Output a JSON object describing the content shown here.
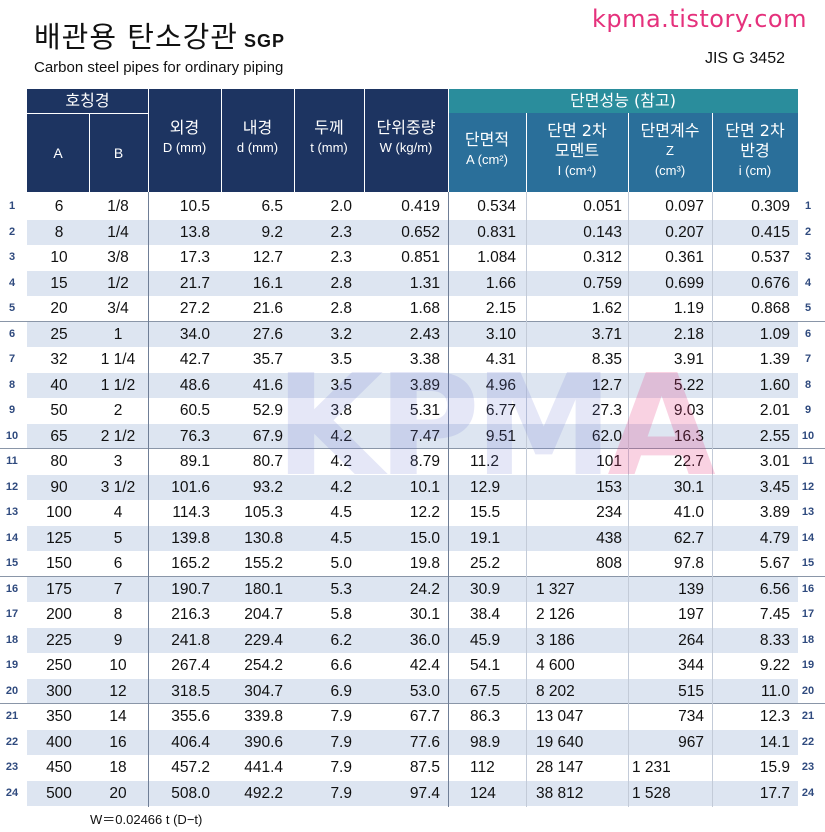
{
  "header": {
    "title_ko": "배관용  탄소강관",
    "title_suffix": "SGP",
    "title_en": "Carbon steel pipes for ordinary piping",
    "site": "kpma.tistory.com",
    "standard": "JIS G 3452"
  },
  "columns": {
    "nominal": "호칭경",
    "a": "A",
    "b": "B",
    "od": "외경",
    "od_unit": "D (mm)",
    "id": "내경",
    "id_unit": "d (mm)",
    "thk": "두께",
    "thk_unit": "t  (mm)",
    "wt": "단위중량",
    "wt_unit": "W (kg/m)",
    "section": "단면성능 (참고)",
    "area": "단면적",
    "area_unit": "A (cm²)",
    "moi": "단면 2차 모멘트",
    "moi_unit": "I (cm⁴)",
    "mod": "단면계수",
    "mod_sym": "Z",
    "mod_unit": "(cm³)",
    "rad": "단면 2차 반경",
    "rad_unit": "i (cm)"
  },
  "rows": [
    [
      "1",
      "6",
      "1/8",
      "10.5",
      "6.5",
      "2.0",
      "0.419",
      "0.534",
      "0.051",
      "0.097",
      "0.309"
    ],
    [
      "2",
      "8",
      "1/4",
      "13.8",
      "9.2",
      "2.3",
      "0.652",
      "0.831",
      "0.143",
      "0.207",
      "0.415"
    ],
    [
      "3",
      "10",
      "3/8",
      "17.3",
      "12.7",
      "2.3",
      "0.851",
      "1.084",
      "0.312",
      "0.361",
      "0.537"
    ],
    [
      "4",
      "15",
      "1/2",
      "21.7",
      "16.1",
      "2.8",
      "1.31",
      "1.66",
      "0.759",
      "0.699",
      "0.676"
    ],
    [
      "5",
      "20",
      "3/4",
      "27.2",
      "21.6",
      "2.8",
      "1.68",
      "2.15",
      "1.62",
      "1.19",
      "0.868"
    ],
    [
      "6",
      "25",
      "1",
      "34.0",
      "27.6",
      "3.2",
      "2.43",
      "3.10",
      "3.71",
      "2.18",
      "1.09"
    ],
    [
      "7",
      "32",
      "1 1/4",
      "42.7",
      "35.7",
      "3.5",
      "3.38",
      "4.31",
      "8.35",
      "3.91",
      "1.39"
    ],
    [
      "8",
      "40",
      "1 1/2",
      "48.6",
      "41.6",
      "3.5",
      "3.89",
      "4.96",
      "12.7",
      "5.22",
      "1.60"
    ],
    [
      "9",
      "50",
      "2",
      "60.5",
      "52.9",
      "3.8",
      "5.31",
      "6.77",
      "27.3",
      "9.03",
      "2.01"
    ],
    [
      "10",
      "65",
      "2 1/2",
      "76.3",
      "67.9",
      "4.2",
      "7.47",
      "9.51",
      "62.0",
      "16.3",
      "2.55"
    ],
    [
      "11",
      "80",
      "3",
      "89.1",
      "80.7",
      "4.2",
      "8.79",
      "11.2",
      "101",
      "22.7",
      "3.01"
    ],
    [
      "12",
      "90",
      "3 1/2",
      "101.6",
      "93.2",
      "4.2",
      "10.1",
      "12.9",
      "153",
      "30.1",
      "3.45"
    ],
    [
      "13",
      "100",
      "4",
      "114.3",
      "105.3",
      "4.5",
      "12.2",
      "15.5",
      "234",
      "41.0",
      "3.89"
    ],
    [
      "14",
      "125",
      "5",
      "139.8",
      "130.8",
      "4.5",
      "15.0",
      "19.1",
      "438",
      "62.7",
      "4.79"
    ],
    [
      "15",
      "150",
      "6",
      "165.2",
      "155.2",
      "5.0",
      "19.8",
      "25.2",
      "808",
      "97.8",
      "5.67"
    ],
    [
      "16",
      "175",
      "7",
      "190.7",
      "180.1",
      "5.3",
      "24.2",
      "30.9",
      "1 327",
      "139",
      "6.56"
    ],
    [
      "17",
      "200",
      "8",
      "216.3",
      "204.7",
      "5.8",
      "30.1",
      "38.4",
      "2 126",
      "197",
      "7.45"
    ],
    [
      "18",
      "225",
      "9",
      "241.8",
      "229.4",
      "6.2",
      "36.0",
      "45.9",
      "3 186",
      "264",
      "8.33"
    ],
    [
      "19",
      "250",
      "10",
      "267.4",
      "254.2",
      "6.6",
      "42.4",
      "54.1",
      "4 600",
      "344",
      "9.22"
    ],
    [
      "20",
      "300",
      "12",
      "318.5",
      "304.7",
      "6.9",
      "53.0",
      "67.5",
      "8 202",
      "515",
      "11.0"
    ],
    [
      "21",
      "350",
      "14",
      "355.6",
      "339.8",
      "7.9",
      "67.7",
      "86.3",
      "13 047",
      "734",
      "12.3"
    ],
    [
      "22",
      "400",
      "16",
      "406.4",
      "390.6",
      "7.9",
      "77.6",
      "98.9",
      "19 640",
      "967",
      "14.1"
    ],
    [
      "23",
      "450",
      "18",
      "457.2",
      "441.4",
      "7.9",
      "87.5",
      "112",
      "28 147",
      "1 231",
      "15.9"
    ],
    [
      "24",
      "500",
      "20",
      "508.0",
      "492.2",
      "7.9",
      "97.4",
      "124",
      "38 812",
      "1 528",
      "17.7"
    ]
  ],
  "watermark": {
    "main": "KPM",
    "accent": "A"
  },
  "formula": "W＝0.02466 t (D−t)",
  "colors": {
    "header_dark": "#1d3461",
    "header_teal": "#2a8d9c",
    "row_alt": "#dde5f1",
    "site": "#e5317c"
  }
}
